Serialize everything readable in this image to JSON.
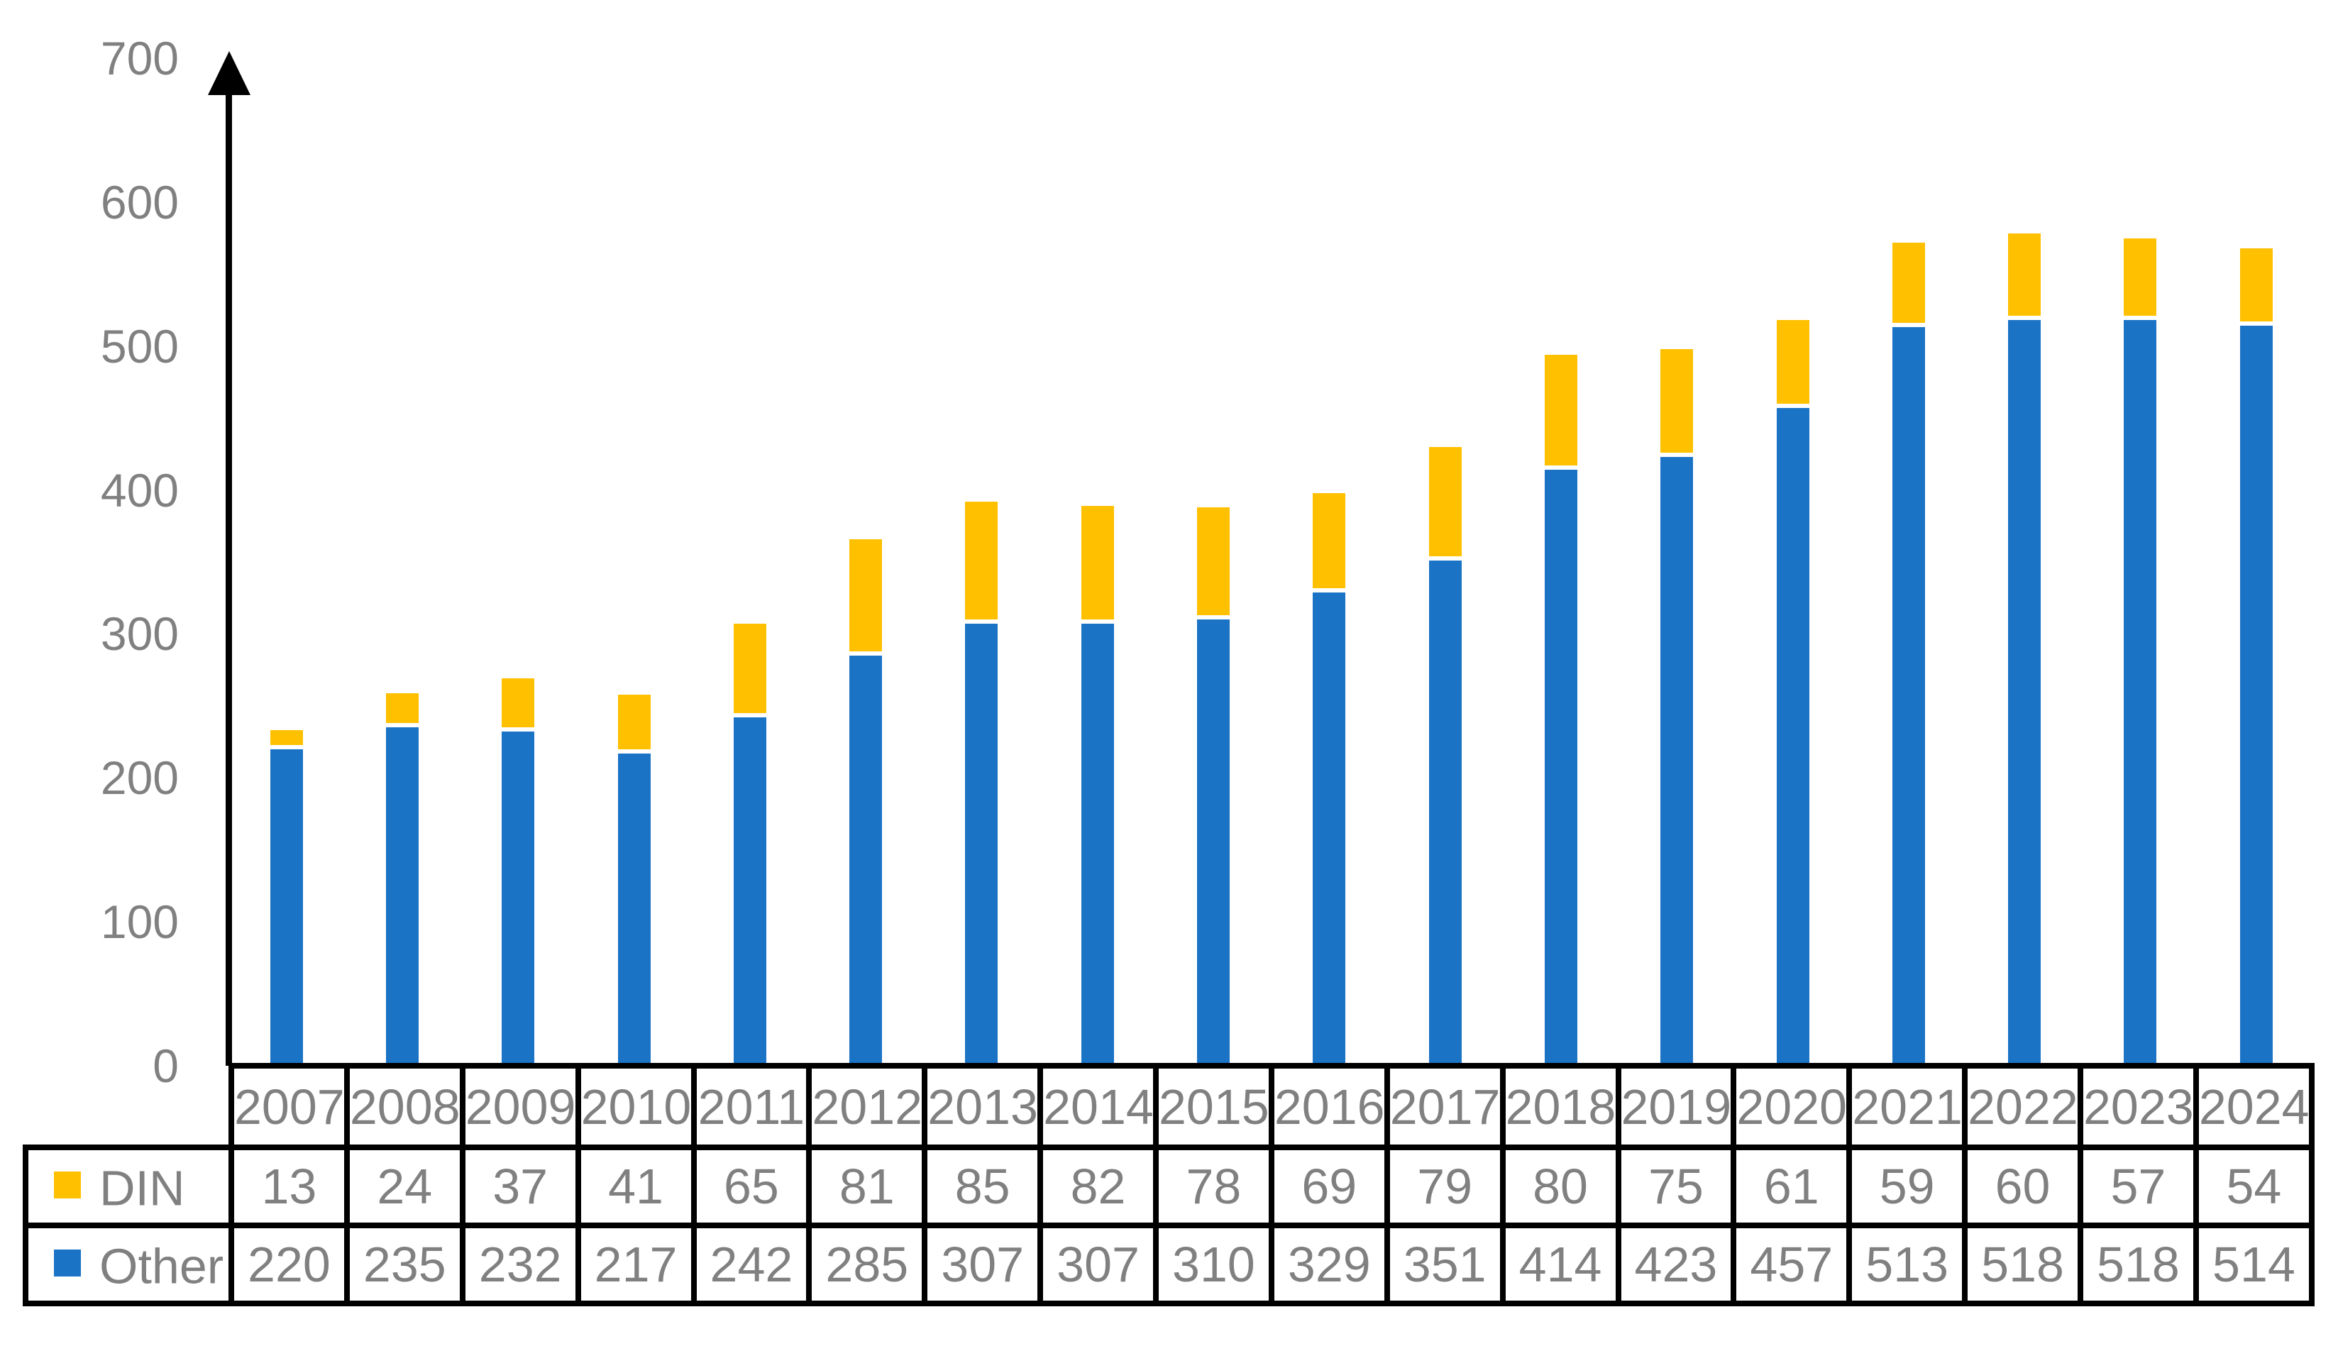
{
  "chart_data": {
    "type": "bar",
    "stacked": true,
    "title": "",
    "xlabel": "",
    "ylabel": "",
    "categories": [
      "2007",
      "2008",
      "2009",
      "2010",
      "2011",
      "2012",
      "2013",
      "2014",
      "2015",
      "2016",
      "2017",
      "2018",
      "2019",
      "2020",
      "2021",
      "2022",
      "2023",
      "2024"
    ],
    "series": [
      {
        "name": "DIN",
        "color": "#FFC000",
        "values": [
          13,
          24,
          37,
          41,
          65,
          81,
          85,
          82,
          78,
          69,
          79,
          80,
          75,
          61,
          59,
          60,
          57,
          54
        ]
      },
      {
        "name": "Other",
        "color": "#1B73C6",
        "values": [
          220,
          235,
          232,
          217,
          242,
          285,
          307,
          307,
          310,
          329,
          351,
          414,
          423,
          457,
          513,
          518,
          518,
          514
        ]
      }
    ],
    "stack_bottom_to_top": [
      "Other",
      "DIN"
    ],
    "y_ticks": [
      0,
      100,
      200,
      300,
      400,
      500,
      600,
      700
    ],
    "ylim": [
      0,
      700
    ],
    "grid": false,
    "legend_position": "table-left-column",
    "colors": {
      "din": "#FFC000",
      "other": "#1B73C6",
      "axis": "#000000",
      "tick_text": "#808080",
      "table_text": "#808080",
      "table_border": "#000000",
      "background": "#FFFFFF",
      "segment_separator": "#FFFFFF"
    }
  }
}
